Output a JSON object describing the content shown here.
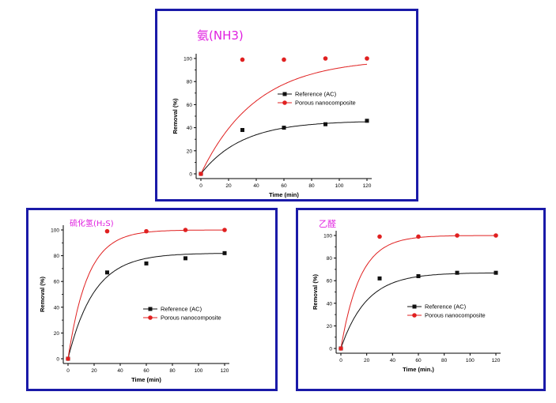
{
  "colors": {
    "frame": "#1a1aa8",
    "title": "#e020e0",
    "reference": "#111111",
    "porous": "#e02020"
  },
  "chart_data": [
    {
      "type": "line",
      "title": "氨(NH3)",
      "xlabel": "Time (min)",
      "ylabel": "Removal (%)",
      "xlim": [
        0,
        120
      ],
      "ylim": [
        0,
        100
      ],
      "xticks": [
        "0",
        "20",
        "40",
        "60",
        "80",
        "100",
        "120"
      ],
      "yticks": [
        "0",
        "20",
        "40",
        "60",
        "80",
        "100"
      ],
      "legend_position": "center-right",
      "series": [
        {
          "name": "Reference (AC)",
          "x": [
            0,
            30,
            60,
            90,
            120
          ],
          "y": [
            0,
            38,
            40,
            43,
            46
          ]
        },
        {
          "name": "Porous nanocomposite",
          "x": [
            0,
            30,
            60,
            90,
            120
          ],
          "y": [
            0,
            99,
            99,
            100,
            100
          ]
        }
      ]
    },
    {
      "type": "line",
      "title": "硫化氢(H₂S)",
      "xlabel": "Time (min)",
      "ylabel": "Removal (%)",
      "xlim": [
        0,
        120
      ],
      "ylim": [
        0,
        100
      ],
      "xticks": [
        "0",
        "20",
        "40",
        "60",
        "80",
        "100",
        "120"
      ],
      "yticks": [
        "0",
        "20",
        "40",
        "60",
        "80",
        "100"
      ],
      "legend_position": "bottom-right",
      "series": [
        {
          "name": "Reference (AC)",
          "x": [
            0,
            30,
            60,
            90,
            120
          ],
          "y": [
            0,
            67,
            74,
            78,
            82
          ]
        },
        {
          "name": "Porous nanocomposite",
          "x": [
            0,
            30,
            60,
            90,
            120
          ],
          "y": [
            0,
            99,
            99,
            100,
            100
          ]
        }
      ]
    },
    {
      "type": "line",
      "title": "乙醛",
      "xlabel": "Time (min.)",
      "ylabel": "Removal (%)",
      "xlim": [
        0,
        120
      ],
      "ylim": [
        0,
        100
      ],
      "xticks": [
        "0",
        "20",
        "40",
        "60",
        "80",
        "100",
        "120"
      ],
      "yticks": [
        "0",
        "20",
        "40",
        "60",
        "80",
        "100"
      ],
      "legend_position": "bottom-right",
      "series": [
        {
          "name": "Reference (AC)",
          "x": [
            0,
            30,
            60,
            90,
            120
          ],
          "y": [
            0,
            62,
            64,
            67,
            67
          ]
        },
        {
          "name": "Porous nanocomposite",
          "x": [
            0,
            30,
            60,
            90,
            120
          ],
          "y": [
            0,
            99,
            99,
            100,
            100
          ]
        }
      ]
    }
  ]
}
